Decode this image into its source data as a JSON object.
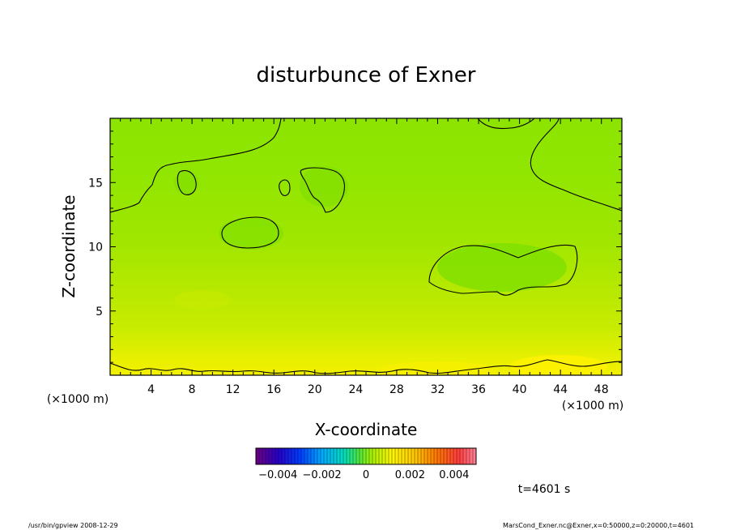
{
  "chart_data": {
    "type": "heatmap",
    "title": "disturbunce of Exner",
    "xlabel": "X-coordinate",
    "ylabel": "Z-coordinate",
    "x_unit_left": "(×1000 m)",
    "x_unit_right": "(×1000 m)",
    "xlim": [
      0,
      50
    ],
    "ylim": [
      0,
      20
    ],
    "x_ticks": [
      "4",
      "8",
      "12",
      "16",
      "20",
      "24",
      "28",
      "32",
      "36",
      "40",
      "44",
      "48"
    ],
    "x_tick_values": [
      4,
      8,
      12,
      16,
      20,
      24,
      28,
      32,
      36,
      40,
      44,
      48
    ],
    "y_ticks": [
      "5",
      "10",
      "15"
    ],
    "y_tick_values": [
      5,
      10,
      15
    ],
    "colorbar": {
      "min": -0.005,
      "max": 0.005,
      "tick_labels": [
        "−0.004",
        "−0.002",
        "0",
        "0.002",
        "0.004"
      ],
      "tick_values": [
        -0.004,
        -0.002,
        0,
        0.002,
        0.004
      ]
    },
    "field_description_values": {
      "surface_max_near_z0": 0.0015,
      "background": 0.0002,
      "upper_min_regions": -0.0004
    },
    "time_label": "t=4601 s",
    "footer_left": "/usr/bin/gpview  2008-12-29",
    "footer_right": "MarsCond_Exner.nc@Exner,x=0:50000,z=0:20000,t=4601"
  }
}
